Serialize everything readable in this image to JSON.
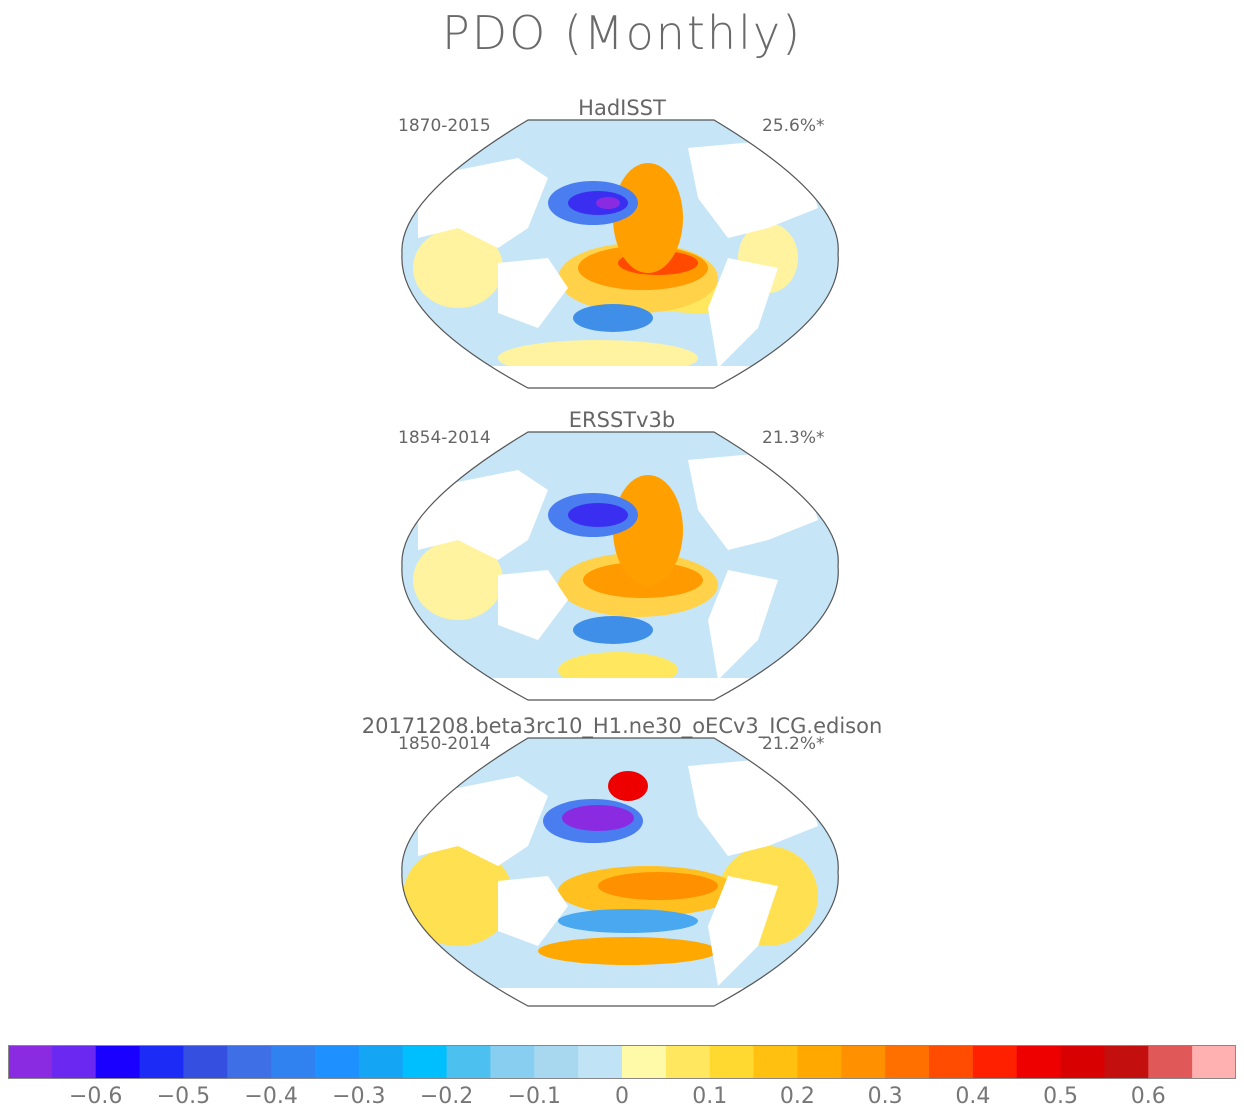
{
  "title": "PDO (Monthly)",
  "panels": [
    {
      "name": "HadISST",
      "years": "1870-2015",
      "pct": "25.6%*"
    },
    {
      "name": "ERSSTv3b",
      "years": "1854-2014",
      "pct": "21.3%*"
    },
    {
      "name": "20171208.beta3rc10_H1.ne30_oECv3_ICG.edison",
      "years": "1850-2014",
      "pct": "21.2%*"
    }
  ],
  "colorbar": {
    "colors": [
      "#8a2be2",
      "#6a28f0",
      "#1a00ff",
      "#1c2bf5",
      "#3550e0",
      "#3f6fe6",
      "#2f82f0",
      "#1e90ff",
      "#15a5f5",
      "#00bfff",
      "#4cc1f0",
      "#87cef0",
      "#a8d8f0",
      "#c0e4f5",
      "#fffaa8",
      "#ffe860",
      "#ffd830",
      "#ffc010",
      "#ffa800",
      "#ff9000",
      "#ff7000",
      "#ff4c00",
      "#ff2000",
      "#ee0000",
      "#d80000",
      "#c40f0f",
      "#e05858",
      "#ffb0b0"
    ],
    "ticks": [
      "−0.6",
      "−0.5",
      "−0.4",
      "−0.3",
      "−0.2",
      "−0.1",
      "0",
      "0.1",
      "0.2",
      "0.3",
      "0.4",
      "0.5",
      "0.6"
    ]
  }
}
